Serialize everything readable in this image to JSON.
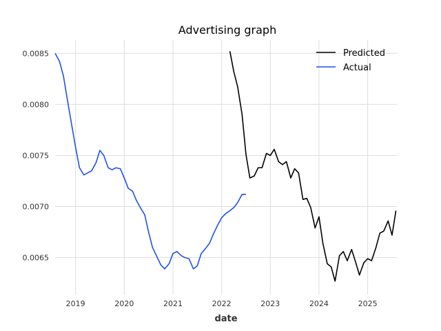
{
  "chart_data": {
    "type": "line",
    "title": "Advertising graph",
    "xlabel": "date",
    "ylabel": "",
    "grid": true,
    "legend_position": "top-right",
    "xlim": [
      2018.58,
      2025.6
    ],
    "ylim": [
      0.00614,
      0.00863
    ],
    "x_ticks": [
      2019,
      2020,
      2021,
      2022,
      2023,
      2024,
      2025
    ],
    "x_tick_labels": [
      "2019",
      "2020",
      "2021",
      "2022",
      "2023",
      "2024",
      "2025"
    ],
    "y_ticks": [
      0.0065,
      0.007,
      0.0075,
      0.008,
      0.0085
    ],
    "y_tick_labels": [
      "0.0065",
      "0.0070",
      "0.0075",
      "0.0080",
      "0.0085"
    ],
    "series": [
      {
        "name": "Predicted",
        "color": "#000000",
        "points": [
          [
            2022.17,
            0.00852
          ],
          [
            2022.25,
            0.00832
          ],
          [
            2022.33,
            0.00817
          ],
          [
            2022.42,
            0.0079
          ],
          [
            2022.5,
            0.00751
          ],
          [
            2022.58,
            0.00728
          ],
          [
            2022.67,
            0.0073
          ],
          [
            2022.75,
            0.00738
          ],
          [
            2022.83,
            0.00738
          ],
          [
            2022.92,
            0.00752
          ],
          [
            2023.0,
            0.0075
          ],
          [
            2023.08,
            0.00756
          ],
          [
            2023.17,
            0.00744
          ],
          [
            2023.25,
            0.00741
          ],
          [
            2023.33,
            0.00744
          ],
          [
            2023.42,
            0.00728
          ],
          [
            2023.5,
            0.00737
          ],
          [
            2023.58,
            0.00733
          ],
          [
            2023.67,
            0.00707
          ],
          [
            2023.75,
            0.00708
          ],
          [
            2023.83,
            0.00699
          ],
          [
            2023.92,
            0.00679
          ],
          [
            2024.0,
            0.0069
          ],
          [
            2024.08,
            0.00664
          ],
          [
            2024.17,
            0.00644
          ],
          [
            2024.25,
            0.00641
          ],
          [
            2024.33,
            0.00627
          ],
          [
            2024.42,
            0.00652
          ],
          [
            2024.5,
            0.00656
          ],
          [
            2024.58,
            0.00647
          ],
          [
            2024.67,
            0.00658
          ],
          [
            2024.75,
            0.00646
          ],
          [
            2024.83,
            0.00633
          ],
          [
            2024.92,
            0.00645
          ],
          [
            2025.0,
            0.00649
          ],
          [
            2025.08,
            0.00647
          ],
          [
            2025.17,
            0.0066
          ],
          [
            2025.25,
            0.00674
          ],
          [
            2025.33,
            0.00676
          ],
          [
            2025.42,
            0.00686
          ],
          [
            2025.5,
            0.00672
          ],
          [
            2025.58,
            0.00696
          ]
        ]
      },
      {
        "name": "Actual",
        "color": "#1f4ff0",
        "points": [
          [
            2018.58,
            0.0085
          ],
          [
            2018.67,
            0.00842
          ],
          [
            2018.75,
            0.00828
          ],
          [
            2018.83,
            0.00805
          ],
          [
            2018.92,
            0.0078
          ],
          [
            2019.0,
            0.00758
          ],
          [
            2019.08,
            0.00738
          ],
          [
            2019.17,
            0.00731
          ],
          [
            2019.25,
            0.00733
          ],
          [
            2019.33,
            0.00735
          ],
          [
            2019.42,
            0.00743
          ],
          [
            2019.5,
            0.00755
          ],
          [
            2019.58,
            0.0075
          ],
          [
            2019.67,
            0.00738
          ],
          [
            2019.75,
            0.00736
          ],
          [
            2019.83,
            0.00738
          ],
          [
            2019.92,
            0.00737
          ],
          [
            2020.0,
            0.00728
          ],
          [
            2020.08,
            0.00718
          ],
          [
            2020.17,
            0.00715
          ],
          [
            2020.25,
            0.00706
          ],
          [
            2020.33,
            0.00699
          ],
          [
            2020.42,
            0.00692
          ],
          [
            2020.5,
            0.00675
          ],
          [
            2020.58,
            0.0066
          ],
          [
            2020.67,
            0.00651
          ],
          [
            2020.75,
            0.00643
          ],
          [
            2020.83,
            0.00639
          ],
          [
            2020.92,
            0.00644
          ],
          [
            2021.0,
            0.00654
          ],
          [
            2021.08,
            0.00656
          ],
          [
            2021.17,
            0.00652
          ],
          [
            2021.25,
            0.0065
          ],
          [
            2021.33,
            0.00649
          ],
          [
            2021.42,
            0.00639
          ],
          [
            2021.5,
            0.00642
          ],
          [
            2021.58,
            0.00654
          ],
          [
            2021.67,
            0.00659
          ],
          [
            2021.75,
            0.00664
          ],
          [
            2021.83,
            0.00673
          ],
          [
            2021.92,
            0.00682
          ],
          [
            2022.0,
            0.00689
          ],
          [
            2022.08,
            0.00693
          ],
          [
            2022.17,
            0.00696
          ],
          [
            2022.25,
            0.00699
          ],
          [
            2022.33,
            0.00704
          ],
          [
            2022.42,
            0.00712
          ],
          [
            2022.5,
            0.00712
          ]
        ]
      }
    ]
  }
}
